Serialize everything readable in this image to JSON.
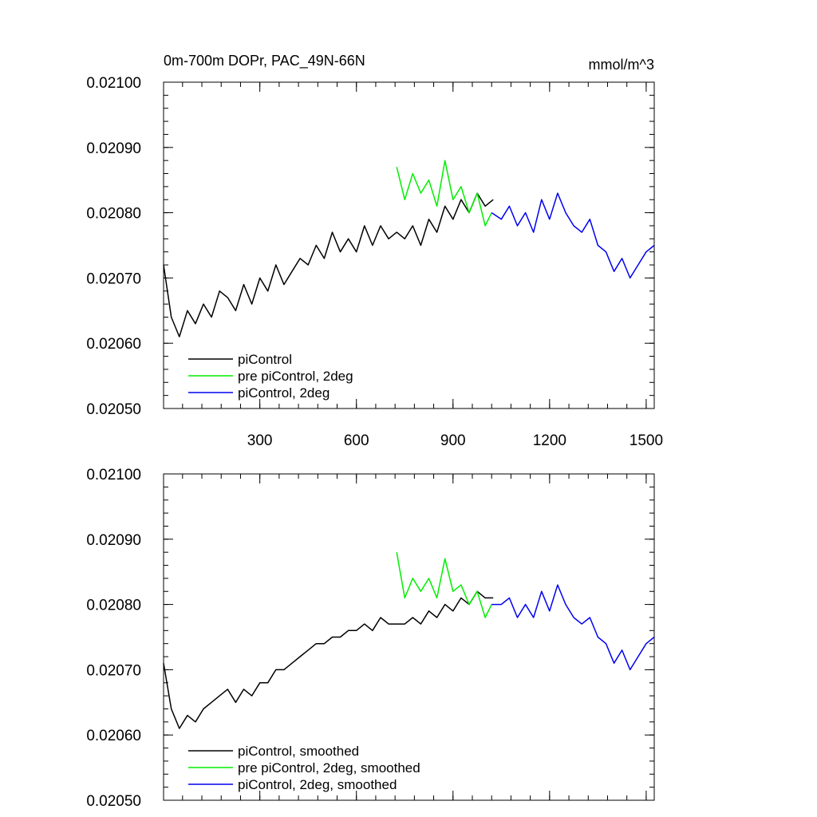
{
  "chart_data": [
    {
      "type": "line",
      "title": "0m-700m DOPr, PAC_49N-66N",
      "units": "mmol/m^3",
      "xlabel": "",
      "ylabel": "",
      "xlim": [
        1,
        1525
      ],
      "ylim": [
        0.0205,
        0.021
      ],
      "xticks": [
        300,
        600,
        900,
        1200,
        1500
      ],
      "xtick_labels": [
        "300",
        "600",
        "900",
        "1200",
        "1500"
      ],
      "yticks": [
        0.0205,
        0.0206,
        0.0207,
        0.0208,
        0.0209,
        0.021
      ],
      "ytick_labels": [
        "0.02050",
        "0.02060",
        "0.02070",
        "0.02080",
        "0.02090",
        "0.02100"
      ],
      "legend_position": "bottom-left",
      "series": [
        {
          "name": "piControl",
          "color": "#000000",
          "x": [
            1,
            25,
            50,
            75,
            100,
            125,
            150,
            175,
            200,
            225,
            250,
            275,
            300,
            325,
            350,
            375,
            400,
            425,
            450,
            475,
            500,
            525,
            550,
            575,
            600,
            625,
            650,
            675,
            700,
            725,
            750,
            775,
            800,
            825,
            850,
            875,
            900,
            925,
            950,
            975,
            1000,
            1025
          ],
          "y": [
            0.02072,
            0.02064,
            0.02061,
            0.02065,
            0.02063,
            0.02066,
            0.02064,
            0.02068,
            0.02067,
            0.02065,
            0.02069,
            0.02066,
            0.0207,
            0.02068,
            0.02072,
            0.02069,
            0.02071,
            0.02073,
            0.02072,
            0.02075,
            0.02073,
            0.02077,
            0.02074,
            0.02076,
            0.02074,
            0.02078,
            0.02075,
            0.02078,
            0.02076,
            0.02077,
            0.02076,
            0.02078,
            0.02075,
            0.02079,
            0.02077,
            0.02081,
            0.02079,
            0.02082,
            0.0208,
            0.02083,
            0.02081,
            0.02082
          ]
        },
        {
          "name": "pre piControl, 2deg",
          "color": "#00ee00",
          "x": [
            725,
            750,
            775,
            800,
            825,
            850,
            875,
            900,
            925,
            950,
            975,
            1000,
            1020
          ],
          "y": [
            0.02087,
            0.02082,
            0.02086,
            0.02083,
            0.02085,
            0.02081,
            0.02088,
            0.02082,
            0.02084,
            0.0208,
            0.02083,
            0.02078,
            0.0208
          ]
        },
        {
          "name": "piControl, 2deg",
          "color": "#0000ee",
          "x": [
            1020,
            1050,
            1075,
            1100,
            1125,
            1150,
            1175,
            1200,
            1225,
            1250,
            1275,
            1300,
            1325,
            1350,
            1375,
            1400,
            1425,
            1450,
            1475,
            1500,
            1525
          ],
          "y": [
            0.0208,
            0.02079,
            0.02081,
            0.02078,
            0.0208,
            0.02077,
            0.02082,
            0.02079,
            0.02083,
            0.0208,
            0.02078,
            0.02077,
            0.02079,
            0.02075,
            0.02074,
            0.02071,
            0.02073,
            0.0207,
            0.02072,
            0.02074,
            0.02075
          ]
        }
      ]
    },
    {
      "type": "line",
      "title": "",
      "units": "",
      "xlabel": "",
      "ylabel": "",
      "xlim": [
        1,
        1525
      ],
      "ylim": [
        0.0205,
        0.021
      ],
      "xticks": [
        300,
        600,
        900,
        1200,
        1500
      ],
      "xtick_labels": [],
      "yticks": [
        0.0205,
        0.0206,
        0.0207,
        0.0208,
        0.0209,
        0.021
      ],
      "ytick_labels": [
        "0.02050",
        "0.02060",
        "0.02070",
        "0.02080",
        "0.02090",
        "0.02100"
      ],
      "legend_position": "bottom-left",
      "series": [
        {
          "name": "piControl, smoothed",
          "color": "#000000",
          "x": [
            1,
            25,
            50,
            75,
            100,
            125,
            150,
            175,
            200,
            225,
            250,
            275,
            300,
            325,
            350,
            375,
            400,
            425,
            450,
            475,
            500,
            525,
            550,
            575,
            600,
            625,
            650,
            675,
            700,
            725,
            750,
            775,
            800,
            825,
            850,
            875,
            900,
            925,
            950,
            975,
            1000,
            1025
          ],
          "y": [
            0.02071,
            0.02064,
            0.02061,
            0.02063,
            0.02062,
            0.02064,
            0.02065,
            0.02066,
            0.02067,
            0.02065,
            0.02067,
            0.02066,
            0.02068,
            0.02068,
            0.0207,
            0.0207,
            0.02071,
            0.02072,
            0.02073,
            0.02074,
            0.02074,
            0.02075,
            0.02075,
            0.02076,
            0.02076,
            0.02077,
            0.02076,
            0.02078,
            0.02077,
            0.02077,
            0.02077,
            0.02078,
            0.02077,
            0.02079,
            0.02078,
            0.0208,
            0.02079,
            0.02081,
            0.0208,
            0.02082,
            0.02081,
            0.02081
          ]
        },
        {
          "name": "pre piControl, 2deg, smoothed",
          "color": "#00ee00",
          "x": [
            725,
            750,
            775,
            800,
            825,
            850,
            875,
            900,
            925,
            950,
            975,
            1000,
            1020
          ],
          "y": [
            0.02088,
            0.02081,
            0.02084,
            0.02082,
            0.02084,
            0.02081,
            0.02087,
            0.02082,
            0.02083,
            0.0208,
            0.02082,
            0.02078,
            0.0208
          ]
        },
        {
          "name": "piControl, 2deg, smoothed",
          "color": "#0000ee",
          "x": [
            1020,
            1050,
            1075,
            1100,
            1125,
            1150,
            1175,
            1200,
            1225,
            1250,
            1275,
            1300,
            1325,
            1350,
            1375,
            1400,
            1425,
            1450,
            1475,
            1500,
            1525
          ],
          "y": [
            0.0208,
            0.0208,
            0.02081,
            0.02078,
            0.0208,
            0.02078,
            0.02082,
            0.02079,
            0.02083,
            0.0208,
            0.02078,
            0.02077,
            0.02078,
            0.02075,
            0.02074,
            0.02071,
            0.02073,
            0.0207,
            0.02072,
            0.02074,
            0.02075
          ]
        }
      ]
    }
  ]
}
